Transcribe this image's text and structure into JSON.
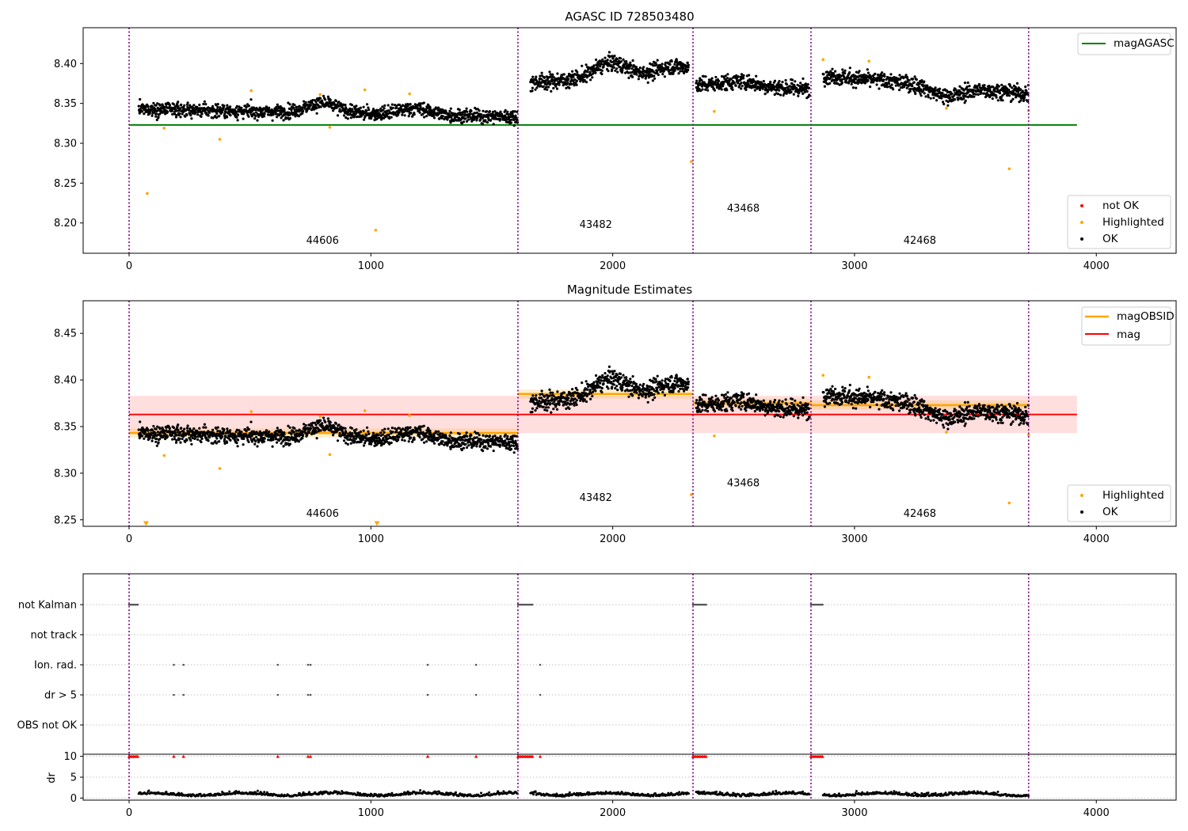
{
  "figure": {
    "colors": {
      "ok": "#000000",
      "highlighted": "#ffa500",
      "not_ok": "#ff0000",
      "mag_agasc": "#008000",
      "mag_obsid": "#ffa500",
      "mag": "#ff0000",
      "obs_boundary": "#800080",
      "band_fill": "#ffd6d6"
    },
    "obs_boundaries": [
      0,
      1608,
      2332,
      2820,
      3720
    ]
  },
  "chart_data": [
    {
      "type": "scatter",
      "title": "AGASC ID 728503480",
      "xlim": [
        -190,
        4330
      ],
      "ylim": [
        8.162,
        8.445
      ],
      "xticks": [
        "0",
        "1000",
        "2000",
        "3000",
        "4000"
      ],
      "yticks": [
        "8.20",
        "8.25",
        "8.30",
        "8.35",
        "8.40"
      ],
      "grid": false,
      "legend_upper": {
        "placement": "top-right",
        "entries": [
          "magAGASC"
        ]
      },
      "legend_lower": {
        "placement": "bottom-right",
        "entries": [
          "not OK",
          "Highlighted",
          "OK"
        ]
      },
      "lines": [
        {
          "name": "magAGASC",
          "y": 8.323,
          "x": [
            0,
            3920
          ]
        }
      ],
      "obsid_labels": [
        {
          "text": "44606",
          "x": 800,
          "y": 8.174
        },
        {
          "text": "43482",
          "x": 1930,
          "y": 8.194
        },
        {
          "text": "43468",
          "x": 2540,
          "y": 8.214
        },
        {
          "text": "42468",
          "x": 3270,
          "y": 8.174
        }
      ],
      "segments": [
        {
          "x": [
            40,
            1608
          ],
          "y_start": 8.343,
          "y_end": 8.333,
          "spread": 0.006,
          "bumps": [
            {
              "x": 800,
              "dy": 0.012
            },
            {
              "x": 1180,
              "dy": 0.008
            }
          ]
        },
        {
          "x": [
            1660,
            2315
          ],
          "y_start": 8.376,
          "y_end": 8.39,
          "spread": 0.007,
          "bumps": [
            {
              "x": 1990,
              "dy": 0.018
            },
            {
              "x": 2250,
              "dy": 0.008
            }
          ]
        },
        {
          "x": [
            2345,
            2815
          ],
          "y_start": 8.374,
          "y_end": 8.368,
          "spread": 0.007,
          "bumps": [
            {
              "x": 2530,
              "dy": 0.006
            }
          ]
        },
        {
          "x": [
            2870,
            3720
          ],
          "y_start": 8.385,
          "y_end": 8.362,
          "spread": 0.007,
          "bumps": [
            {
              "x": 3380,
              "dy": -0.012
            }
          ]
        }
      ],
      "highlighted_points": [
        [
          75,
          8.237
        ],
        [
          145,
          8.319
        ],
        [
          375,
          8.305
        ],
        [
          505,
          8.366
        ],
        [
          790,
          8.361
        ],
        [
          830,
          8.32
        ],
        [
          975,
          8.367
        ],
        [
          1020,
          8.191
        ],
        [
          1160,
          8.362
        ],
        [
          2325,
          8.277
        ],
        [
          2420,
          8.34
        ],
        [
          2870,
          8.405
        ],
        [
          3060,
          8.403
        ],
        [
          3380,
          8.344
        ],
        [
          3640,
          8.268
        ],
        [
          3720,
          8.341
        ]
      ]
    },
    {
      "type": "scatter",
      "title": "Magnitude Estimates",
      "xlim": [
        -190,
        4330
      ],
      "ylim": [
        8.243,
        8.485
      ],
      "xticks": [
        "0",
        "1000",
        "2000",
        "3000",
        "4000"
      ],
      "yticks": [
        "8.25",
        "8.30",
        "8.35",
        "8.40",
        "8.45"
      ],
      "grid": false,
      "legend_upper": {
        "placement": "top-right",
        "entries": [
          "magOBSID",
          "mag"
        ]
      },
      "legend_lower": {
        "placement": "bottom-right",
        "entries": [
          "Highlighted",
          "OK"
        ]
      },
      "mag_line": {
        "y": 8.363,
        "band": [
          8.343,
          8.383
        ],
        "x": [
          0,
          3920
        ]
      },
      "obsid_mag_lines": [
        {
          "x": [
            0,
            1608
          ],
          "y": 8.343
        },
        {
          "x": [
            1608,
            2332
          ],
          "y": 8.385
        },
        {
          "x": [
            2332,
            2820
          ],
          "y": 8.375
        },
        {
          "x": [
            2820,
            3720
          ],
          "y": 8.373
        }
      ],
      "obsid_labels": [
        {
          "text": "44606",
          "x": 800,
          "y": 8.253
        },
        {
          "text": "43482",
          "x": 1930,
          "y": 8.27
        },
        {
          "text": "43468",
          "x": 2540,
          "y": 8.286
        },
        {
          "text": "42468",
          "x": 3270,
          "y": 8.253
        }
      ],
      "highlighted_points": [
        [
          145,
          8.319
        ],
        [
          375,
          8.305
        ],
        [
          505,
          8.366
        ],
        [
          790,
          8.361
        ],
        [
          830,
          8.32
        ],
        [
          975,
          8.367
        ],
        [
          1160,
          8.362
        ],
        [
          2325,
          8.277
        ],
        [
          2420,
          8.34
        ],
        [
          2870,
          8.405
        ],
        [
          3060,
          8.403
        ],
        [
          3380,
          8.344
        ],
        [
          3640,
          8.268
        ],
        [
          3720,
          8.341
        ]
      ],
      "offscale_markers": [
        [
          70,
          8.246
        ],
        [
          1025,
          8.246
        ]
      ]
    },
    {
      "type": "scatter",
      "title": "",
      "xlim": [
        -190,
        4330
      ],
      "categories": [
        "not Kalman",
        "not track",
        "Ion. rad.",
        "dr > 5",
        "OBS not OK"
      ],
      "flags": {
        "not Kalman": [
          [
            0,
            40
          ],
          [
            1608,
            1670
          ],
          [
            2332,
            2390
          ],
          [
            2820,
            2870
          ]
        ],
        "not track": [],
        "Ion. rad.": [
          185,
          225,
          615,
          740,
          750,
          1235,
          1435,
          1700
        ],
        "dr > 5": [
          185,
          225,
          615,
          740,
          750,
          1235,
          1435,
          1700
        ],
        "OBS not OK": []
      }
    },
    {
      "type": "scatter",
      "title": "",
      "ylabel": "dr",
      "xlim": [
        -190,
        4330
      ],
      "ylim": [
        -0.5,
        10.5
      ],
      "xticks": [
        "0",
        "1000",
        "2000",
        "3000",
        "4000"
      ],
      "yticks": [
        "0",
        "5",
        "10"
      ],
      "grid": true,
      "clipped_points_at": 10,
      "clipped_x": [
        [
          0,
          40
        ],
        [
          1608,
          1670
        ],
        [
          2332,
          2390
        ],
        [
          2820,
          2870
        ],
        185,
        225,
        615,
        740,
        750,
        1235,
        1435,
        1700
      ],
      "segments": [
        [
          40,
          1608
        ],
        [
          1660,
          2315
        ],
        [
          2345,
          2815
        ],
        [
          2870,
          3720
        ]
      ]
    }
  ]
}
